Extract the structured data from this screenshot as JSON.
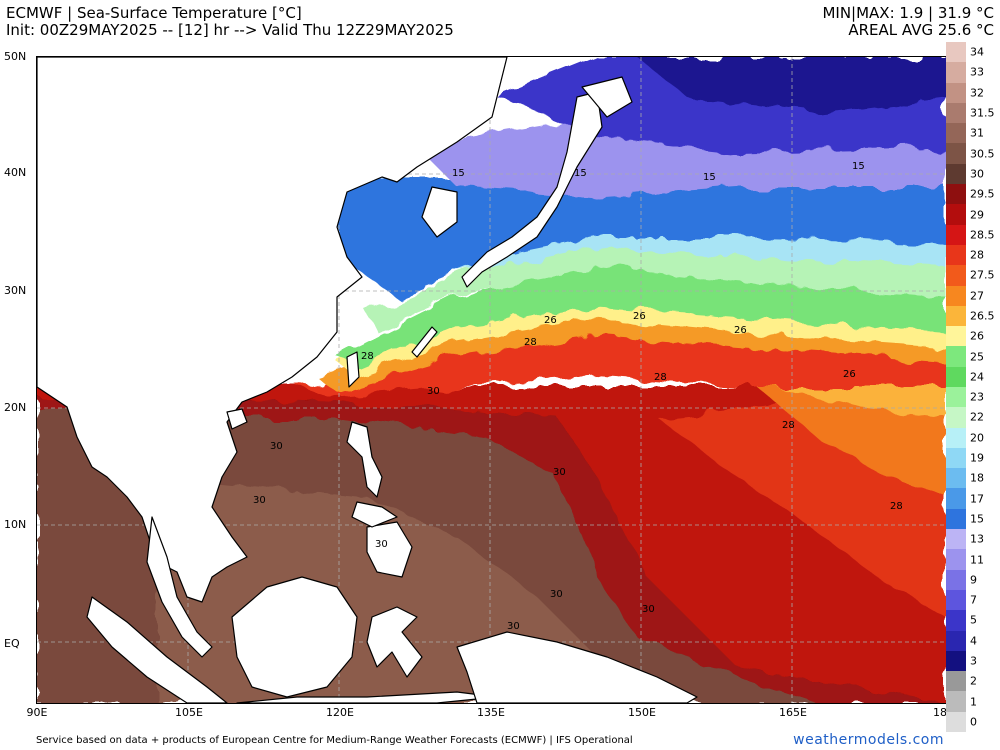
{
  "header": {
    "line1_left": "ECMWF | Sea-Surface Temperature [°C]",
    "line2_left": "Init: 00Z29MAY2025 -- [12] hr --> Valid Thu 12Z29MAY2025",
    "line1_right": "MIN|MAX: 1.9 | 31.9 °C",
    "line2_right": "AREAL AVG 25.6 °C"
  },
  "axes": {
    "y_labels": [
      "50N",
      "40N",
      "30N",
      "20N",
      "10N",
      "EQ"
    ],
    "x_labels": [
      "90E",
      "105E",
      "120E",
      "135E",
      "150E",
      "165E",
      "18"
    ]
  },
  "contour_labels": [
    "15",
    "15",
    "15",
    "15",
    "26",
    "26",
    "26",
    "26",
    "28",
    "28",
    "28",
    "28",
    "28",
    "30",
    "30",
    "30",
    "30",
    "30",
    "30",
    "30",
    "30"
  ],
  "colorbar": {
    "labels": [
      "34",
      "33",
      "32",
      "31.5",
      "31",
      "30.5",
      "30",
      "29.5",
      "29",
      "28.5",
      "28",
      "27.5",
      "27",
      "26.5",
      "26",
      "25",
      "24",
      "23",
      "22",
      "20",
      "19",
      "18",
      "17",
      "15",
      "13",
      "11",
      "9",
      "7",
      "5",
      "4",
      "3",
      "2",
      "1",
      "0"
    ],
    "colors": [
      "#e8c8c0",
      "#d6aca0",
      "#c29284",
      "#aa7b6e",
      "#946658",
      "#7d5446",
      "#5e3a30",
      "#8e0f0f",
      "#b30d0d",
      "#d51515",
      "#e8361a",
      "#f25a1b",
      "#f7871f",
      "#fbb53a",
      "#fff59a",
      "#7de87d",
      "#5fd95f",
      "#9bf29b",
      "#c6f7c6",
      "#b7f0f7",
      "#8fd8f5",
      "#6cbcf0",
      "#4a99e8",
      "#2e74de",
      "#bcb4f5",
      "#9c93ee",
      "#7a72e6",
      "#5d55de",
      "#3b35c9",
      "#2a26b0",
      "#131080",
      "#999999",
      "#bbbbbb",
      "#dddddd"
    ]
  },
  "footer": {
    "credit": "Service based on data + products of European Centre for Medium-Range Weather Forecasts (ECMWF) | IFS Operational",
    "brand": "weathermodels.com"
  }
}
